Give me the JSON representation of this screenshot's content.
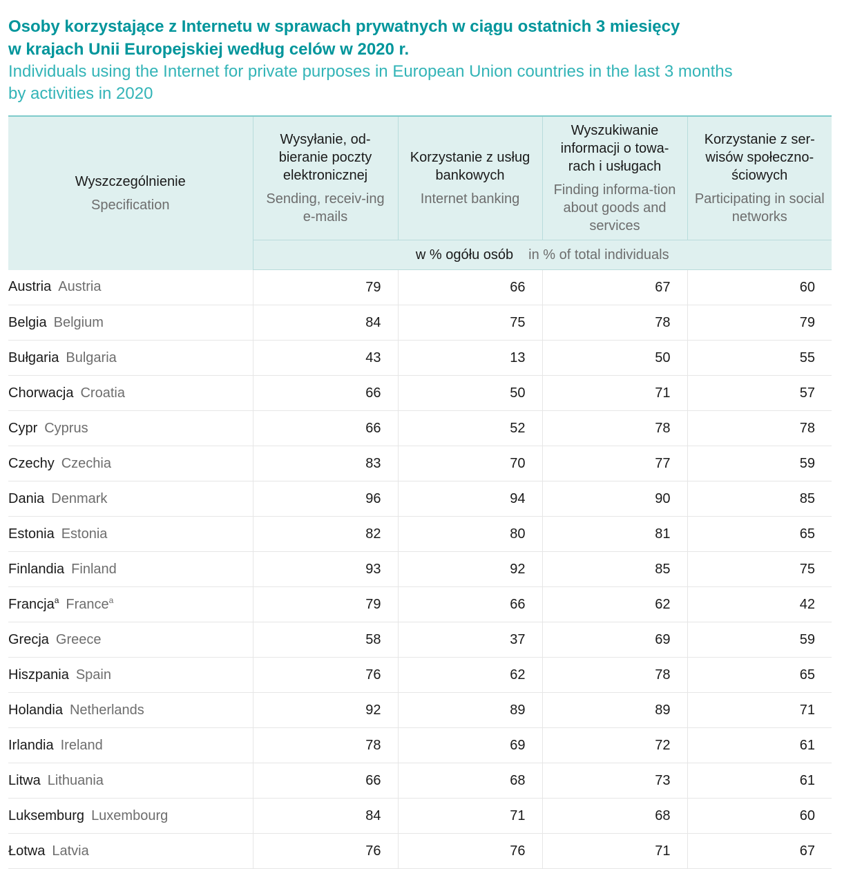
{
  "title": {
    "pl_line1": "Osoby korzystające z Internetu w sprawach prywatnych w ciągu ostatnich 3 miesięcy",
    "pl_line2": "w krajach Unii Europejskiej według celów w 2020 r.",
    "en_line1": "Individuals using the Internet for private purposes in European Union countries in the last 3 months",
    "en_line2": "by activities in 2020"
  },
  "header": {
    "spec": {
      "pl": "Wyszczególnienie",
      "en": "Specification"
    },
    "columns": [
      {
        "pl": "Wysyłanie, od-bieranie poczty elektronicznej",
        "en": "Sending, receiv-ing e-mails"
      },
      {
        "pl": "Korzystanie z usług bankowych",
        "en": "Internet banking"
      },
      {
        "pl": "Wyszukiwanie informacji o towa-rach i usługach",
        "en": "Finding informa-tion about goods and services"
      },
      {
        "pl": "Korzystanie z ser-wisów społeczno-ściowych",
        "en": "Participating in social networks"
      }
    ],
    "unit": {
      "pl": "w % ogółu osób",
      "en": "in % of total individuals"
    }
  },
  "rows": [
    {
      "pl": "Austria",
      "en": "Austria",
      "note": "",
      "values": [
        "79",
        "66",
        "67",
        "60"
      ]
    },
    {
      "pl": "Belgia",
      "en": "Belgium",
      "note": "",
      "values": [
        "84",
        "75",
        "78",
        "79"
      ]
    },
    {
      "pl": "Bułgaria",
      "en": "Bulgaria",
      "note": "",
      "values": [
        "43",
        "13",
        "50",
        "55"
      ]
    },
    {
      "pl": "Chorwacja",
      "en": "Croatia",
      "note": "",
      "values": [
        "66",
        "50",
        "71",
        "57"
      ]
    },
    {
      "pl": "Cypr",
      "en": "Cyprus",
      "note": "",
      "values": [
        "66",
        "52",
        "78",
        "78"
      ]
    },
    {
      "pl": "Czechy",
      "en": "Czechia",
      "note": "",
      "values": [
        "83",
        "70",
        "77",
        "59"
      ]
    },
    {
      "pl": "Dania",
      "en": "Denmark",
      "note": "",
      "values": [
        "96",
        "94",
        "90",
        "85"
      ]
    },
    {
      "pl": "Estonia",
      "en": "Estonia",
      "note": "",
      "values": [
        "82",
        "80",
        "81",
        "65"
      ]
    },
    {
      "pl": "Finlandia",
      "en": "Finland",
      "note": "",
      "values": [
        "93",
        "92",
        "85",
        "75"
      ]
    },
    {
      "pl": "Francja",
      "en": "France",
      "note": "a",
      "values": [
        "79",
        "66",
        "62",
        "42"
      ]
    },
    {
      "pl": "Grecja",
      "en": "Greece",
      "note": "",
      "values": [
        "58",
        "37",
        "69",
        "59"
      ]
    },
    {
      "pl": "Hiszpania",
      "en": "Spain",
      "note": "",
      "values": [
        "76",
        "62",
        "78",
        "65"
      ]
    },
    {
      "pl": "Holandia",
      "en": "Netherlands",
      "note": "",
      "values": [
        "92",
        "89",
        "89",
        "71"
      ]
    },
    {
      "pl": "Irlandia",
      "en": "Ireland",
      "note": "",
      "values": [
        "78",
        "69",
        "72",
        "61"
      ]
    },
    {
      "pl": "Litwa",
      "en": "Lithuania",
      "note": "",
      "values": [
        "66",
        "68",
        "73",
        "61"
      ]
    },
    {
      "pl": "Luksemburg",
      "en": "Luxembourg",
      "note": "",
      "values": [
        "84",
        "71",
        "68",
        "60"
      ]
    },
    {
      "pl": "Łotwa",
      "en": "Latvia",
      "note": "",
      "values": [
        "76",
        "76",
        "71",
        "67"
      ]
    }
  ]
}
